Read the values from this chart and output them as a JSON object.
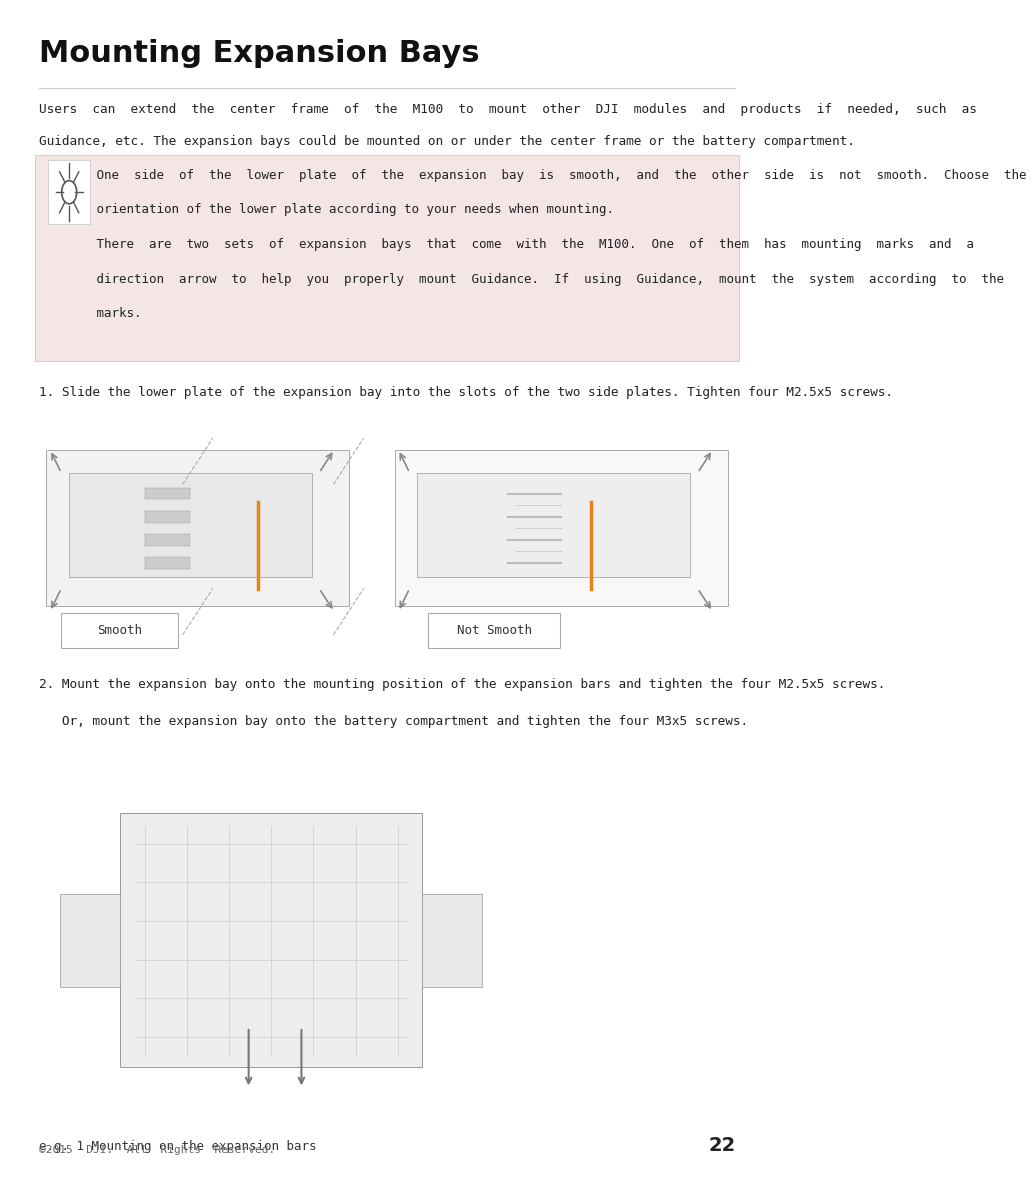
{
  "title": "Mounting Expansion Bays",
  "title_fontsize": 22,
  "bg_color": "#ffffff",
  "note_bg_color": "#f5e6e6",
  "note_border_color": "#e8c8c8",
  "footer_text": "©2015  DJI.  All  Rights  Reserved.",
  "footer_page": "22",
  "step1": "1. Slide the lower plate of the expansion bay into the slots of the two side plates. Tighten four M2.5x5 screws.",
  "step2_line1": "2. Mount the expansion bay onto the mounting position of the expansion bars and tighten the four M2.5x5 screws.",
  "step2_line2": "   Or, mount the expansion bay onto the battery compartment and tighten the four M3x5 screws.",
  "label_smooth": "Smooth",
  "label_not_smooth": "Not Smooth",
  "eg_label": "e.g. 1 Mounting on the expansion bars",
  "note_lines": [
    " One  side  of  the  lower  plate  of  the  expansion  bay  is  smooth,  and  the  other  side  is  not  smooth.  Choose  the",
    " orientation of the lower plate according to your needs when mounting.",
    " There  are  two  sets  of  expansion  bays  that  come  with  the  M100.  One  of  them  has  mounting  marks  and  a",
    " direction  arrow  to  help  you  properly  mount  Guidance.  If  using  Guidance,  mount  the  system  according  to  the",
    " marks."
  ],
  "para_line1": "Users  can  extend  the  center  frame  of  the  M100  to  mount  other  DJI  modules  and  products  if  needed,  such  as",
  "para_line2": "Guidance, etc. The expansion bays could be mounted on or under the center frame or the battery compartment.",
  "orange_color": "#E8821A",
  "gray_arrow_color": "#888888",
  "label_box_color": "#aaaaaa",
  "text_color": "#222222",
  "footer_text_color": "#666666",
  "footer_page_color": "#222222"
}
